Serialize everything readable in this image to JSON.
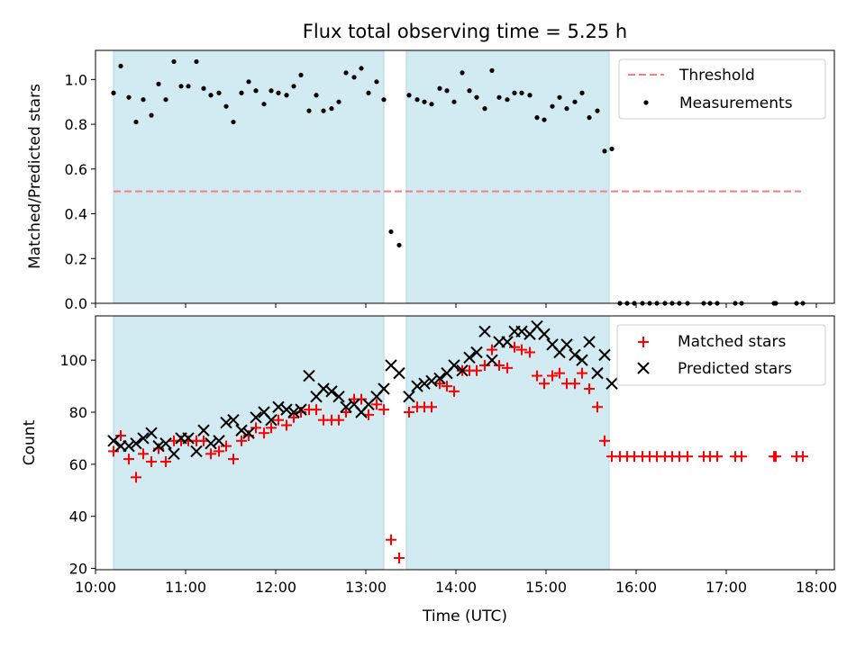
{
  "chart_data": [
    {
      "type": "scatter",
      "title": "Flux total observing time = 5.25 h",
      "xlabel": "",
      "ylabel": "Matched/Predicted stars",
      "xlim": [
        10.0,
        18.2
      ],
      "ylim": [
        0.0,
        1.13
      ],
      "yticks": [
        0.0,
        0.2,
        0.4,
        0.6,
        0.8,
        1.0
      ],
      "ytick_labels": [
        "0.0",
        "0.2",
        "0.4",
        "0.6",
        "0.8",
        "1.0"
      ],
      "legend_position": "top-right",
      "shaded_spans": [
        [
          10.2,
          13.2
        ],
        [
          13.45,
          15.7
        ]
      ],
      "shade_color": "#add8e6",
      "series": [
        {
          "name": "Threshold",
          "style": "dashed-line",
          "color": "#f08080",
          "x": [
            10.2,
            17.83
          ],
          "y": [
            0.5,
            0.5
          ]
        },
        {
          "name": "Measurements",
          "style": "dot",
          "color": "#000000",
          "x": [
            10.2,
            10.28,
            10.37,
            10.45,
            10.53,
            10.62,
            10.7,
            10.78,
            10.87,
            10.95,
            11.03,
            11.12,
            11.2,
            11.28,
            11.37,
            11.45,
            11.53,
            11.62,
            11.7,
            11.78,
            11.87,
            11.95,
            12.03,
            12.12,
            12.2,
            12.28,
            12.37,
            12.45,
            12.53,
            12.62,
            12.7,
            12.78,
            12.87,
            12.95,
            13.03,
            13.12,
            13.2,
            13.28,
            13.37,
            13.48,
            13.57,
            13.65,
            13.73,
            13.82,
            13.9,
            13.98,
            14.07,
            14.15,
            14.23,
            14.32,
            14.4,
            14.48,
            14.57,
            14.65,
            14.73,
            14.82,
            14.9,
            14.98,
            15.07,
            15.15,
            15.23,
            15.32,
            15.4,
            15.48,
            15.57,
            15.65,
            15.73,
            15.82,
            15.9,
            15.98,
            16.07,
            16.15,
            16.23,
            16.32,
            16.4,
            16.48,
            16.57,
            16.75,
            16.82,
            16.9,
            17.1,
            17.17,
            17.53,
            17.55,
            17.78,
            17.85
          ],
          "y": [
            0.94,
            1.06,
            0.92,
            0.81,
            0.91,
            0.84,
            0.98,
            0.91,
            1.08,
            0.97,
            0.97,
            1.08,
            0.96,
            0.93,
            0.94,
            0.88,
            0.81,
            0.94,
            0.99,
            0.95,
            0.89,
            0.95,
            0.94,
            0.93,
            0.97,
            1.02,
            0.86,
            0.93,
            0.86,
            0.87,
            0.9,
            1.03,
            1.01,
            1.05,
            0.94,
            0.99,
            0.91,
            0.32,
            0.26,
            0.93,
            0.91,
            0.9,
            0.89,
            0.96,
            0.95,
            0.9,
            1.03,
            0.95,
            0.92,
            0.87,
            1.04,
            0.92,
            0.91,
            0.94,
            0.94,
            0.93,
            0.83,
            0.82,
            0.88,
            0.92,
            0.87,
            0.9,
            0.94,
            0.83,
            0.86,
            0.68,
            0.69,
            0.0,
            0.0,
            0.0,
            0.0,
            0.0,
            0.0,
            0.0,
            0.0,
            0.0,
            0.0,
            0.0,
            0.0,
            0.0,
            0.0,
            0.0,
            0.0,
            0.0,
            0.0,
            0.0
          ]
        }
      ]
    },
    {
      "type": "scatter",
      "title": "",
      "xlabel": "Time (UTC)",
      "ylabel": "Count",
      "xlim": [
        10.0,
        18.2
      ],
      "ylim": [
        19.5,
        117
      ],
      "xticks": [
        10,
        11,
        12,
        13,
        14,
        15,
        16,
        17,
        18
      ],
      "xtick_labels": [
        "10:00",
        "11:00",
        "12:00",
        "13:00",
        "14:00",
        "15:00",
        "16:00",
        "17:00",
        "18:00"
      ],
      "yticks": [
        20,
        40,
        60,
        80,
        100
      ],
      "ytick_labels": [
        "20",
        "40",
        "60",
        "80",
        "100"
      ],
      "legend_position": "top-right",
      "shaded_spans": [
        [
          10.2,
          13.2
        ],
        [
          13.45,
          15.7
        ]
      ],
      "shade_color": "#add8e6",
      "series": [
        {
          "name": "Matched stars",
          "marker": "+",
          "color": "#ff0000",
          "x": [
            10.2,
            10.28,
            10.37,
            10.45,
            10.53,
            10.62,
            10.7,
            10.78,
            10.87,
            10.95,
            11.03,
            11.12,
            11.2,
            11.28,
            11.37,
            11.45,
            11.53,
            11.62,
            11.7,
            11.78,
            11.87,
            11.95,
            12.03,
            12.12,
            12.2,
            12.28,
            12.37,
            12.45,
            12.53,
            12.62,
            12.7,
            12.78,
            12.87,
            12.95,
            13.03,
            13.12,
            13.2,
            13.28,
            13.37,
            13.48,
            13.57,
            13.65,
            13.73,
            13.82,
            13.9,
            13.98,
            14.07,
            14.15,
            14.23,
            14.32,
            14.4,
            14.48,
            14.57,
            14.65,
            14.73,
            14.82,
            14.9,
            14.98,
            15.07,
            15.15,
            15.23,
            15.32,
            15.4,
            15.48,
            15.57,
            15.65,
            15.73,
            15.82,
            15.9,
            15.98,
            16.07,
            16.15,
            16.23,
            16.32,
            16.4,
            16.48,
            16.57,
            16.75,
            16.82,
            16.9,
            17.1,
            17.17,
            17.53,
            17.55,
            17.78,
            17.85
          ],
          "y": [
            65,
            71,
            62,
            55,
            64,
            61,
            66,
            61,
            69,
            69,
            69,
            69,
            69,
            64,
            65,
            67,
            62,
            69,
            71,
            74,
            72,
            74,
            77,
            75,
            78,
            80,
            81,
            81,
            77,
            77,
            77,
            80,
            85,
            85,
            79,
            83,
            81,
            31,
            24,
            80,
            82,
            82,
            82,
            91,
            90,
            88,
            96,
            96,
            96,
            98,
            104,
            98,
            97,
            105,
            104,
            103,
            94,
            91,
            94,
            95,
            91,
            91,
            95,
            89,
            82,
            69,
            63,
            63,
            63,
            63,
            63,
            63,
            63,
            63,
            63,
            63,
            63,
            63,
            63,
            63,
            63,
            63,
            63,
            63,
            63,
            63
          ]
        },
        {
          "name": "Predicted stars",
          "marker": "x",
          "color": "#000000",
          "x": [
            10.2,
            10.28,
            10.37,
            10.45,
            10.53,
            10.62,
            10.7,
            10.78,
            10.87,
            10.95,
            11.03,
            11.12,
            11.2,
            11.28,
            11.37,
            11.45,
            11.53,
            11.62,
            11.7,
            11.78,
            11.87,
            11.95,
            12.03,
            12.12,
            12.2,
            12.28,
            12.37,
            12.45,
            12.53,
            12.62,
            12.7,
            12.78,
            12.87,
            12.95,
            13.03,
            13.12,
            13.2,
            13.28,
            13.37,
            13.48,
            13.57,
            13.65,
            13.73,
            13.82,
            13.9,
            13.98,
            14.07,
            14.15,
            14.23,
            14.32,
            14.4,
            14.48,
            14.57,
            14.65,
            14.73,
            14.82,
            14.9,
            14.98,
            15.07,
            15.15,
            15.23,
            15.32,
            15.4,
            15.48,
            15.57,
            15.65,
            15.73
          ],
          "y": [
            69,
            67,
            67,
            68,
            70,
            72,
            67,
            68,
            64,
            70,
            70,
            65,
            73,
            68,
            69,
            76,
            77,
            73,
            72,
            78,
            80,
            77,
            82,
            81,
            80,
            81,
            94,
            86,
            89,
            88,
            86,
            82,
            83,
            80,
            83,
            86,
            89,
            98,
            95,
            86,
            90,
            91,
            92,
            93,
            95,
            98,
            96,
            101,
            103,
            111,
            100,
            107,
            107,
            111,
            111,
            110,
            113,
            110,
            106,
            103,
            106,
            102,
            100,
            107,
            95,
            102,
            91
          ]
        }
      ]
    }
  ]
}
